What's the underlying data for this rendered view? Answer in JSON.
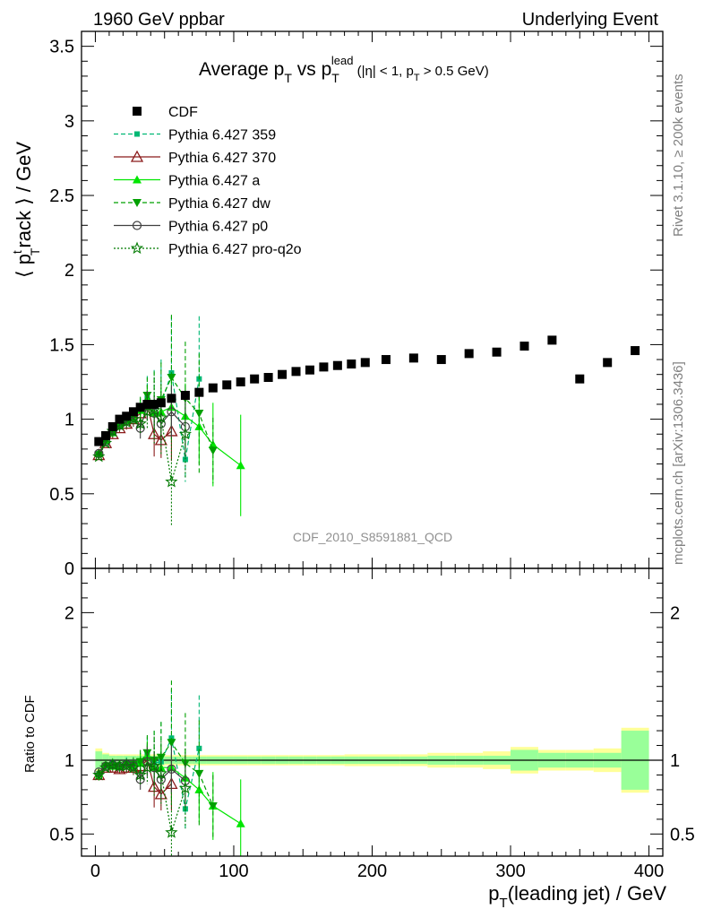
{
  "header": {
    "left": "1960 GeV ppbar",
    "right": "Underlying Event",
    "title_main": "Average p",
    "title_sub_T": "T",
    "title_vs": " vs p",
    "title_sup_lead": "lead",
    "title_tail1": " (|η| < 1, p",
    "title_tail_T": "T",
    "title_tail2": " > 0.5 GeV)"
  },
  "side_labels": {
    "rivet": "Rivet 3.1.10, ≥ 200k events",
    "mcplots": "mcplots.cern.ch [arXiv:1306.3436]",
    "analysis": "CDF_2010_S8591881_QCD"
  },
  "axes": {
    "ylabel_top": "⟨ p",
    "ylabel_top_sup": "t",
    "ylabel_top_sub": "T",
    "ylabel_top_tail": "rack ⟩ / GeV",
    "ylabel_bottom": "Ratio to CDF",
    "xlabel_p": "p",
    "xlabel_T": "T",
    "xlabel_tail": "(leading jet) / GeV",
    "x_ticks": [
      "0",
      "100",
      "200",
      "300",
      "400"
    ],
    "y_ticks_top": [
      "0",
      "0.5",
      "1",
      "1.5",
      "2",
      "2.5",
      "3",
      "3.5"
    ],
    "y_ticks_bottom": [
      "0.5",
      "1",
      "2"
    ],
    "y_ticks_bottom_right": [
      "0.5",
      "1",
      "2"
    ]
  },
  "legend": [
    {
      "label": "CDF",
      "color": "#000000",
      "marker": "square-filled",
      "line": "none"
    },
    {
      "label": "Pythia 6.427 359",
      "color": "#00b874",
      "marker": "square-small",
      "line": "dashed"
    },
    {
      "label": "Pythia 6.427 370",
      "color": "#8b1a1a",
      "marker": "triangle-open",
      "line": "solid"
    },
    {
      "label": "Pythia 6.427 a",
      "color": "#00e600",
      "marker": "triangle-filled",
      "line": "solid"
    },
    {
      "label": "Pythia 6.427 dw",
      "color": "#00a000",
      "marker": "triangle-down",
      "line": "dashed"
    },
    {
      "label": "Pythia 6.427 p0",
      "color": "#404040",
      "marker": "circle-open",
      "line": "solid"
    },
    {
      "label": "Pythia 6.427 pro-q2o",
      "color": "#007a00",
      "marker": "star-open",
      "line": "dotted"
    }
  ],
  "chart_data": [
    {
      "type": "scatter",
      "panel": "main",
      "xlim": [
        -10,
        410
      ],
      "ylim": [
        0,
        3.6
      ],
      "cdf": {
        "x": [
          2.5,
          7.5,
          12.5,
          17.5,
          22.5,
          27.5,
          32.5,
          37.5,
          42.5,
          47.5,
          55,
          65,
          75,
          85,
          95,
          105,
          115,
          125,
          135,
          145,
          155,
          165,
          175,
          185,
          195,
          210,
          230,
          250,
          270,
          290,
          310,
          330,
          350,
          370,
          390
        ],
        "y": [
          0.85,
          0.89,
          0.95,
          1.0,
          1.02,
          1.05,
          1.08,
          1.1,
          1.1,
          1.11,
          1.14,
          1.16,
          1.18,
          1.21,
          1.23,
          1.25,
          1.27,
          1.28,
          1.3,
          1.32,
          1.33,
          1.35,
          1.36,
          1.37,
          1.38,
          1.4,
          1.41,
          1.4,
          1.44,
          1.45,
          1.49,
          1.53,
          1.27,
          1.38,
          1.46
        ]
      },
      "series": [
        {
          "name": "Pythia 6.427 359",
          "x": [
            2.5,
            7.5,
            12.5,
            17.5,
            22.5,
            27.5,
            32.5,
            37.5,
            42.5,
            47.5,
            55,
            65,
            75
          ],
          "y": [
            0.77,
            0.85,
            0.93,
            0.96,
            1.0,
            1.02,
            1.06,
            1.14,
            1.08,
            1.1,
            1.31,
            0.73,
            1.27
          ],
          "err": [
            0.02,
            0.02,
            0.02,
            0.03,
            0.04,
            0.05,
            0.08,
            0.15,
            0.25,
            0.3,
            0.38,
            0.15,
            0.42
          ]
        },
        {
          "name": "Pythia 6.427 370",
          "x": [
            2.5,
            7.5,
            12.5,
            17.5,
            22.5,
            27.5,
            32.5,
            37.5,
            42.5,
            47.5,
            55
          ],
          "y": [
            0.76,
            0.84,
            0.9,
            0.94,
            0.97,
            1.0,
            1.04,
            1.1,
            0.9,
            0.86,
            0.92
          ],
          "err": [
            0.02,
            0.02,
            0.03,
            0.03,
            0.04,
            0.05,
            0.07,
            0.1,
            0.15,
            0.12,
            0.2
          ]
        },
        {
          "name": "Pythia 6.427 a",
          "x": [
            2.5,
            7.5,
            12.5,
            17.5,
            22.5,
            27.5,
            32.5,
            37.5,
            42.5,
            47.5,
            55,
            65,
            75,
            85,
            105
          ],
          "y": [
            0.77,
            0.86,
            0.91,
            0.96,
            0.99,
            1.01,
            1.06,
            1.13,
            1.04,
            1.05,
            1.08,
            1.02,
            0.95,
            0.83,
            0.69
          ],
          "err": [
            0.02,
            0.02,
            0.02,
            0.03,
            0.04,
            0.05,
            0.07,
            0.1,
            0.12,
            0.15,
            0.2,
            0.22,
            0.25,
            0.28,
            0.34
          ]
        },
        {
          "name": "Pythia 6.427 dw",
          "x": [
            2.5,
            7.5,
            12.5,
            17.5,
            22.5,
            27.5,
            32.5,
            37.5,
            42.5,
            47.5,
            55,
            65,
            75,
            85
          ],
          "y": [
            0.76,
            0.85,
            0.91,
            0.95,
            0.99,
            1.02,
            1.07,
            1.16,
            1.1,
            1.13,
            1.28,
            1.14,
            1.04,
            0.79
          ],
          "err": [
            0.02,
            0.02,
            0.03,
            0.03,
            0.04,
            0.05,
            0.08,
            0.12,
            0.22,
            0.25,
            0.42,
            0.38,
            0.4,
            0.22
          ]
        },
        {
          "name": "Pythia 6.427 p0",
          "x": [
            2.5,
            7.5,
            12.5,
            17.5,
            22.5,
            27.5,
            32.5,
            37.5,
            42.5,
            47.5,
            55,
            65
          ],
          "y": [
            0.77,
            0.85,
            0.92,
            0.96,
            0.99,
            1.01,
            0.94,
            1.09,
            1.04,
            0.97,
            1.05,
            0.95
          ],
          "err": [
            0.02,
            0.02,
            0.03,
            0.03,
            0.04,
            0.05,
            0.07,
            0.1,
            0.12,
            0.15,
            0.18,
            0.2
          ]
        },
        {
          "name": "Pythia 6.427 pro-q2o",
          "x": [
            2.5,
            7.5,
            12.5,
            17.5,
            22.5,
            27.5,
            32.5,
            37.5,
            42.5,
            47.5,
            55,
            65
          ],
          "y": [
            0.75,
            0.84,
            0.92,
            0.96,
            0.98,
            1.0,
            0.97,
            1.05,
            1.06,
            1.01,
            0.58,
            0.9
          ],
          "err": [
            0.02,
            0.02,
            0.03,
            0.03,
            0.04,
            0.05,
            0.07,
            0.12,
            0.22,
            0.25,
            0.3,
            0.3
          ]
        }
      ]
    },
    {
      "type": "scatter",
      "panel": "ratio",
      "xlim": [
        -10,
        410
      ],
      "ylim": [
        0.35,
        2.3
      ],
      "ylabel": "Ratio to CDF",
      "ref_line": 1,
      "bands": {
        "x_edges": [
          0,
          5,
          10,
          15,
          20,
          25,
          30,
          35,
          40,
          45,
          50,
          60,
          70,
          80,
          90,
          100,
          110,
          120,
          130,
          140,
          150,
          160,
          170,
          180,
          190,
          200,
          220,
          240,
          260,
          280,
          300,
          320,
          340,
          360,
          380,
          400
        ],
        "green_half": [
          0.06,
          0.04,
          0.03,
          0.03,
          0.03,
          0.03,
          0.03,
          0.03,
          0.03,
          0.03,
          0.025,
          0.025,
          0.025,
          0.025,
          0.025,
          0.025,
          0.025,
          0.025,
          0.025,
          0.025,
          0.025,
          0.025,
          0.025,
          0.025,
          0.025,
          0.025,
          0.025,
          0.03,
          0.03,
          0.03,
          0.07,
          0.05,
          0.05,
          0.05,
          0.2
        ],
        "yellow_half": [
          0.08,
          0.05,
          0.04,
          0.04,
          0.04,
          0.04,
          0.04,
          0.04,
          0.04,
          0.04,
          0.035,
          0.035,
          0.035,
          0.035,
          0.035,
          0.035,
          0.035,
          0.035,
          0.035,
          0.035,
          0.035,
          0.035,
          0.035,
          0.04,
          0.04,
          0.04,
          0.04,
          0.05,
          0.05,
          0.06,
          0.09,
          0.07,
          0.07,
          0.08,
          0.22
        ]
      },
      "series": [
        {
          "name": "Pythia 6.427 359",
          "x": [
            2.5,
            7.5,
            12.5,
            17.5,
            22.5,
            27.5,
            32.5,
            37.5,
            42.5,
            47.5,
            55,
            65,
            75
          ],
          "y": [
            0.91,
            0.96,
            0.98,
            0.96,
            0.98,
            0.97,
            0.98,
            1.04,
            0.98,
            0.99,
            1.15,
            0.67,
            1.08
          ],
          "err": [
            0.02,
            0.02,
            0.02,
            0.03,
            0.04,
            0.05,
            0.07,
            0.12,
            0.22,
            0.27,
            0.33,
            0.14,
            0.36
          ]
        },
        {
          "name": "Pythia 6.427 370",
          "x": [
            2.5,
            7.5,
            12.5,
            17.5,
            22.5,
            27.5,
            32.5,
            37.5,
            42.5,
            47.5,
            55
          ],
          "y": [
            0.9,
            0.95,
            0.95,
            0.94,
            0.95,
            0.95,
            0.96,
            1.0,
            0.82,
            0.77,
            0.84
          ],
          "err": [
            0.02,
            0.02,
            0.03,
            0.03,
            0.04,
            0.05,
            0.07,
            0.1,
            0.14,
            0.11,
            0.18
          ]
        },
        {
          "name": "Pythia 6.427 a",
          "x": [
            2.5,
            7.5,
            12.5,
            17.5,
            22.5,
            27.5,
            32.5,
            37.5,
            42.5,
            47.5,
            55,
            65,
            75,
            85,
            105
          ],
          "y": [
            0.91,
            0.97,
            0.96,
            0.96,
            0.97,
            0.96,
            0.98,
            1.03,
            0.95,
            0.95,
            0.95,
            0.88,
            0.8,
            0.69,
            0.57
          ],
          "err": [
            0.02,
            0.02,
            0.02,
            0.03,
            0.04,
            0.05,
            0.07,
            0.1,
            0.11,
            0.14,
            0.18,
            0.2,
            0.22,
            0.23,
            0.3
          ]
        },
        {
          "name": "Pythia 6.427 dw",
          "x": [
            2.5,
            7.5,
            12.5,
            17.5,
            22.5,
            27.5,
            32.5,
            37.5,
            42.5,
            47.5,
            55,
            65,
            75,
            85
          ],
          "y": [
            0.89,
            0.96,
            0.96,
            0.95,
            0.97,
            0.97,
            0.99,
            1.05,
            1.0,
            1.02,
            1.12,
            0.98,
            0.91,
            0.69
          ],
          "err": [
            0.02,
            0.02,
            0.03,
            0.03,
            0.04,
            0.05,
            0.08,
            0.12,
            0.2,
            0.24,
            0.42,
            0.34,
            0.36,
            0.21
          ]
        },
        {
          "name": "Pythia 6.427 p0",
          "x": [
            2.5,
            7.5,
            12.5,
            17.5,
            22.5,
            27.5,
            32.5,
            37.5,
            42.5,
            47.5,
            55,
            65
          ],
          "y": [
            0.92,
            0.96,
            0.97,
            0.96,
            0.97,
            0.96,
            0.87,
            0.99,
            0.95,
            0.87,
            0.94,
            0.86
          ],
          "err": [
            0.02,
            0.02,
            0.03,
            0.03,
            0.04,
            0.05,
            0.07,
            0.1,
            0.11,
            0.14,
            0.16,
            0.18
          ]
        },
        {
          "name": "Pythia 6.427 pro-q2o",
          "x": [
            2.5,
            7.5,
            12.5,
            17.5,
            22.5,
            27.5,
            32.5,
            37.5,
            42.5,
            47.5,
            55,
            65
          ],
          "y": [
            0.9,
            0.95,
            0.97,
            0.96,
            0.96,
            0.95,
            0.9,
            0.95,
            0.96,
            0.91,
            0.51,
            0.81
          ],
          "err": [
            0.02,
            0.02,
            0.03,
            0.03,
            0.04,
            0.05,
            0.07,
            0.11,
            0.2,
            0.22,
            0.27,
            0.27
          ]
        }
      ]
    }
  ]
}
